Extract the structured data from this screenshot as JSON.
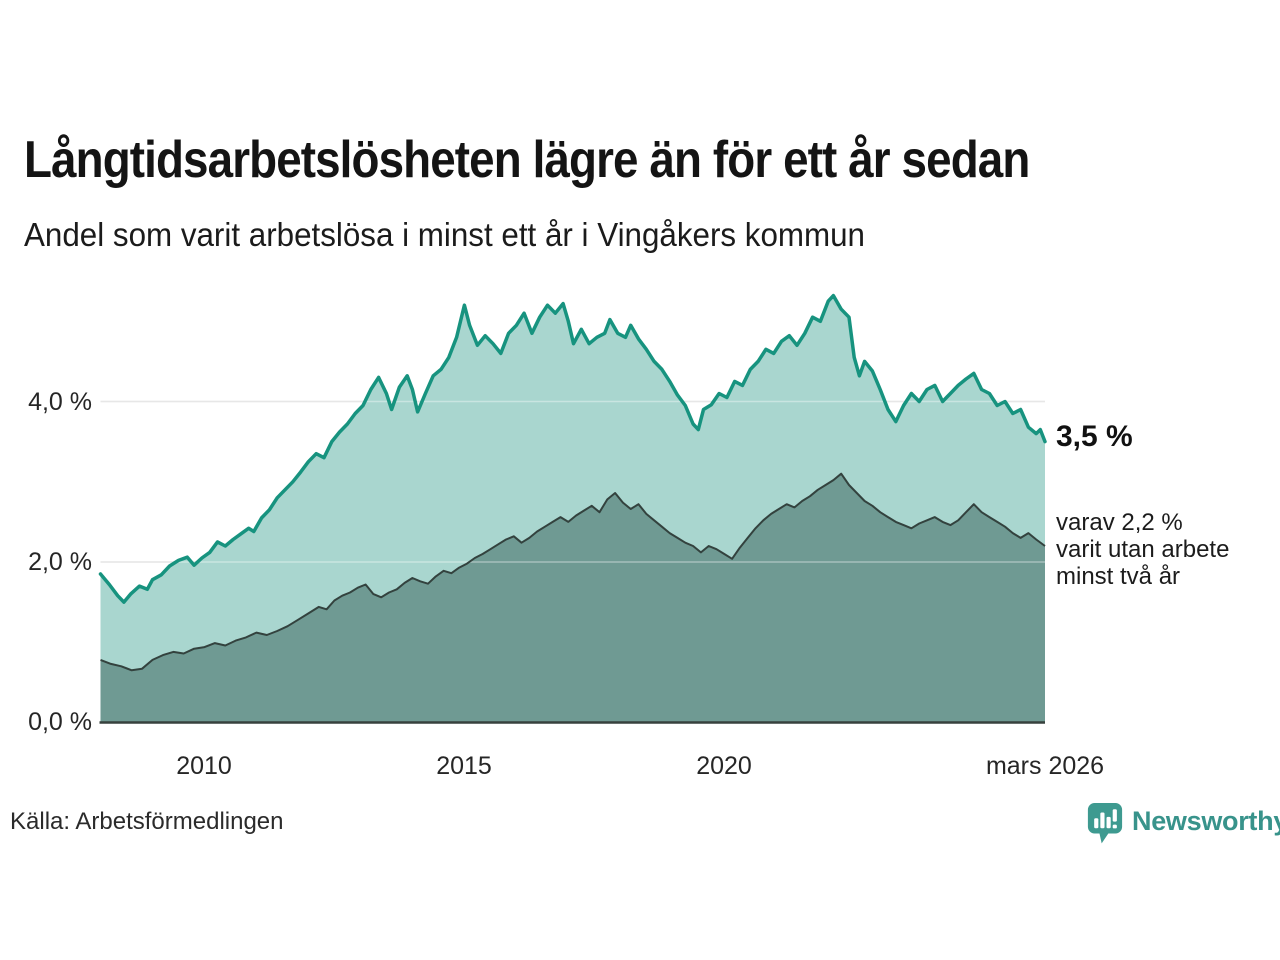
{
  "header": {
    "title": "Långtidsarbetslösheten lägre än för ett år sedan",
    "subtitle": "Andel som varit arbetslösa i minst ett år i Vingåkers kommun"
  },
  "chart_data": {
    "type": "area",
    "title": "Långtidsarbetslösheten lägre än för ett år sedan",
    "unit": "%",
    "grid": "horizontal",
    "legend_position": "none",
    "x_range": [
      2008.0,
      2026.17
    ],
    "ylim": [
      0,
      5.4
    ],
    "y_gridlines": [
      2.0,
      4.0
    ],
    "yticks": [
      {
        "value": 4.0,
        "label": "4,0 %"
      },
      {
        "value": 2.0,
        "label": "2,0 %"
      },
      {
        "value": 0.0,
        "label": "0,0 %"
      }
    ],
    "xticks": [
      {
        "value": 2010,
        "label": "2010"
      },
      {
        "value": 2015,
        "label": "2015"
      },
      {
        "value": 2020,
        "label": "2020"
      },
      {
        "value": 2026.17,
        "label": "mars 2026"
      }
    ],
    "colors": {
      "area1": "#a9d6cf",
      "line1": "#17937f",
      "area2": "#6f9a93",
      "line2": "#33423e",
      "grid": "#d9d9d9",
      "axis": "#37413d"
    },
    "series": [
      {
        "name": "minst ett år",
        "end_value_label": "3,5 %",
        "points": [
          [
            2008.0,
            1.85
          ],
          [
            2008.17,
            1.72
          ],
          [
            2008.33,
            1.58
          ],
          [
            2008.45,
            1.5
          ],
          [
            2008.58,
            1.6
          ],
          [
            2008.75,
            1.7
          ],
          [
            2008.9,
            1.66
          ],
          [
            2009.0,
            1.78
          ],
          [
            2009.17,
            1.84
          ],
          [
            2009.33,
            1.95
          ],
          [
            2009.5,
            2.02
          ],
          [
            2009.67,
            2.06
          ],
          [
            2009.8,
            1.96
          ],
          [
            2009.95,
            2.05
          ],
          [
            2010.1,
            2.12
          ],
          [
            2010.25,
            2.25
          ],
          [
            2010.4,
            2.2
          ],
          [
            2010.55,
            2.28
          ],
          [
            2010.7,
            2.35
          ],
          [
            2010.85,
            2.42
          ],
          [
            2010.95,
            2.38
          ],
          [
            2011.1,
            2.55
          ],
          [
            2011.25,
            2.65
          ],
          [
            2011.4,
            2.8
          ],
          [
            2011.55,
            2.9
          ],
          [
            2011.7,
            3.0
          ],
          [
            2011.85,
            3.12
          ],
          [
            2012.0,
            3.25
          ],
          [
            2012.15,
            3.35
          ],
          [
            2012.3,
            3.3
          ],
          [
            2012.45,
            3.5
          ],
          [
            2012.6,
            3.62
          ],
          [
            2012.75,
            3.72
          ],
          [
            2012.9,
            3.85
          ],
          [
            2013.05,
            3.95
          ],
          [
            2013.2,
            4.15
          ],
          [
            2013.35,
            4.3
          ],
          [
            2013.5,
            4.1
          ],
          [
            2013.6,
            3.9
          ],
          [
            2013.75,
            4.18
          ],
          [
            2013.9,
            4.32
          ],
          [
            2014.0,
            4.15
          ],
          [
            2014.1,
            3.87
          ],
          [
            2014.25,
            4.1
          ],
          [
            2014.4,
            4.32
          ],
          [
            2014.55,
            4.4
          ],
          [
            2014.7,
            4.55
          ],
          [
            2014.85,
            4.8
          ],
          [
            2015.0,
            5.2
          ],
          [
            2015.1,
            4.95
          ],
          [
            2015.25,
            4.7
          ],
          [
            2015.4,
            4.82
          ],
          [
            2015.55,
            4.72
          ],
          [
            2015.7,
            4.6
          ],
          [
            2015.85,
            4.85
          ],
          [
            2016.0,
            4.95
          ],
          [
            2016.15,
            5.1
          ],
          [
            2016.3,
            4.85
          ],
          [
            2016.45,
            5.05
          ],
          [
            2016.6,
            5.2
          ],
          [
            2016.75,
            5.1
          ],
          [
            2016.9,
            5.22
          ],
          [
            2017.0,
            5.0
          ],
          [
            2017.1,
            4.72
          ],
          [
            2017.25,
            4.9
          ],
          [
            2017.4,
            4.72
          ],
          [
            2017.55,
            4.8
          ],
          [
            2017.7,
            4.85
          ],
          [
            2017.8,
            5.02
          ],
          [
            2017.95,
            4.85
          ],
          [
            2018.1,
            4.8
          ],
          [
            2018.2,
            4.95
          ],
          [
            2018.35,
            4.78
          ],
          [
            2018.5,
            4.65
          ],
          [
            2018.65,
            4.5
          ],
          [
            2018.8,
            4.4
          ],
          [
            2018.95,
            4.25
          ],
          [
            2019.1,
            4.08
          ],
          [
            2019.25,
            3.95
          ],
          [
            2019.4,
            3.72
          ],
          [
            2019.5,
            3.65
          ],
          [
            2019.6,
            3.9
          ],
          [
            2019.75,
            3.96
          ],
          [
            2019.9,
            4.1
          ],
          [
            2020.05,
            4.05
          ],
          [
            2020.2,
            4.25
          ],
          [
            2020.35,
            4.2
          ],
          [
            2020.5,
            4.4
          ],
          [
            2020.65,
            4.5
          ],
          [
            2020.8,
            4.65
          ],
          [
            2020.95,
            4.6
          ],
          [
            2021.1,
            4.75
          ],
          [
            2021.25,
            4.82
          ],
          [
            2021.4,
            4.7
          ],
          [
            2021.55,
            4.85
          ],
          [
            2021.7,
            5.05
          ],
          [
            2021.85,
            5.0
          ],
          [
            2022.0,
            5.25
          ],
          [
            2022.1,
            5.32
          ],
          [
            2022.25,
            5.15
          ],
          [
            2022.4,
            5.05
          ],
          [
            2022.5,
            4.55
          ],
          [
            2022.6,
            4.32
          ],
          [
            2022.7,
            4.5
          ],
          [
            2022.85,
            4.38
          ],
          [
            2023.0,
            4.15
          ],
          [
            2023.15,
            3.9
          ],
          [
            2023.3,
            3.75
          ],
          [
            2023.45,
            3.95
          ],
          [
            2023.6,
            4.1
          ],
          [
            2023.75,
            4.0
          ],
          [
            2023.9,
            4.15
          ],
          [
            2024.05,
            4.2
          ],
          [
            2024.2,
            4.0
          ],
          [
            2024.35,
            4.1
          ],
          [
            2024.5,
            4.2
          ],
          [
            2024.65,
            4.28
          ],
          [
            2024.8,
            4.35
          ],
          [
            2024.95,
            4.15
          ],
          [
            2025.1,
            4.1
          ],
          [
            2025.25,
            3.95
          ],
          [
            2025.4,
            4.0
          ],
          [
            2025.55,
            3.85
          ],
          [
            2025.7,
            3.9
          ],
          [
            2025.85,
            3.68
          ],
          [
            2026.0,
            3.6
          ],
          [
            2026.08,
            3.65
          ],
          [
            2026.17,
            3.5
          ]
        ]
      },
      {
        "name": "minst två år",
        "end_value_label": "varav 2,2 % varit utan arbete minst två år",
        "points": [
          [
            2008.0,
            0.78
          ],
          [
            2008.2,
            0.73
          ],
          [
            2008.4,
            0.7
          ],
          [
            2008.6,
            0.65
          ],
          [
            2008.8,
            0.67
          ],
          [
            2009.0,
            0.78
          ],
          [
            2009.2,
            0.84
          ],
          [
            2009.4,
            0.88
          ],
          [
            2009.6,
            0.86
          ],
          [
            2009.8,
            0.92
          ],
          [
            2010.0,
            0.94
          ],
          [
            2010.2,
            0.99
          ],
          [
            2010.4,
            0.96
          ],
          [
            2010.6,
            1.02
          ],
          [
            2010.8,
            1.06
          ],
          [
            2011.0,
            1.12
          ],
          [
            2011.2,
            1.09
          ],
          [
            2011.4,
            1.14
          ],
          [
            2011.6,
            1.2
          ],
          [
            2011.8,
            1.28
          ],
          [
            2012.0,
            1.36
          ],
          [
            2012.2,
            1.44
          ],
          [
            2012.35,
            1.41
          ],
          [
            2012.5,
            1.52
          ],
          [
            2012.65,
            1.58
          ],
          [
            2012.8,
            1.62
          ],
          [
            2012.95,
            1.68
          ],
          [
            2013.1,
            1.72
          ],
          [
            2013.25,
            1.6
          ],
          [
            2013.4,
            1.56
          ],
          [
            2013.55,
            1.62
          ],
          [
            2013.7,
            1.66
          ],
          [
            2013.85,
            1.74
          ],
          [
            2014.0,
            1.8
          ],
          [
            2014.15,
            1.76
          ],
          [
            2014.3,
            1.73
          ],
          [
            2014.45,
            1.82
          ],
          [
            2014.6,
            1.89
          ],
          [
            2014.75,
            1.86
          ],
          [
            2014.9,
            1.93
          ],
          [
            2015.05,
            1.98
          ],
          [
            2015.2,
            2.05
          ],
          [
            2015.35,
            2.1
          ],
          [
            2015.5,
            2.16
          ],
          [
            2015.65,
            2.22
          ],
          [
            2015.8,
            2.28
          ],
          [
            2015.95,
            2.32
          ],
          [
            2016.1,
            2.24
          ],
          [
            2016.25,
            2.3
          ],
          [
            2016.4,
            2.38
          ],
          [
            2016.55,
            2.44
          ],
          [
            2016.7,
            2.5
          ],
          [
            2016.85,
            2.56
          ],
          [
            2017.0,
            2.5
          ],
          [
            2017.15,
            2.58
          ],
          [
            2017.3,
            2.64
          ],
          [
            2017.45,
            2.7
          ],
          [
            2017.6,
            2.62
          ],
          [
            2017.75,
            2.78
          ],
          [
            2017.9,
            2.86
          ],
          [
            2018.05,
            2.74
          ],
          [
            2018.2,
            2.66
          ],
          [
            2018.35,
            2.72
          ],
          [
            2018.5,
            2.6
          ],
          [
            2018.65,
            2.52
          ],
          [
            2018.8,
            2.44
          ],
          [
            2018.95,
            2.36
          ],
          [
            2019.1,
            2.3
          ],
          [
            2019.25,
            2.24
          ],
          [
            2019.4,
            2.2
          ],
          [
            2019.55,
            2.12
          ],
          [
            2019.7,
            2.2
          ],
          [
            2019.85,
            2.16
          ],
          [
            2020.0,
            2.1
          ],
          [
            2020.15,
            2.04
          ],
          [
            2020.3,
            2.18
          ],
          [
            2020.45,
            2.3
          ],
          [
            2020.6,
            2.42
          ],
          [
            2020.75,
            2.52
          ],
          [
            2020.9,
            2.6
          ],
          [
            2021.05,
            2.66
          ],
          [
            2021.2,
            2.72
          ],
          [
            2021.35,
            2.68
          ],
          [
            2021.5,
            2.76
          ],
          [
            2021.65,
            2.82
          ],
          [
            2021.8,
            2.9
          ],
          [
            2021.95,
            2.96
          ],
          [
            2022.1,
            3.02
          ],
          [
            2022.25,
            3.1
          ],
          [
            2022.4,
            2.96
          ],
          [
            2022.55,
            2.86
          ],
          [
            2022.7,
            2.76
          ],
          [
            2022.85,
            2.7
          ],
          [
            2023.0,
            2.62
          ],
          [
            2023.15,
            2.56
          ],
          [
            2023.3,
            2.5
          ],
          [
            2023.45,
            2.46
          ],
          [
            2023.6,
            2.42
          ],
          [
            2023.75,
            2.48
          ],
          [
            2023.9,
            2.52
          ],
          [
            2024.05,
            2.56
          ],
          [
            2024.2,
            2.5
          ],
          [
            2024.35,
            2.46
          ],
          [
            2024.5,
            2.52
          ],
          [
            2024.65,
            2.62
          ],
          [
            2024.8,
            2.72
          ],
          [
            2024.95,
            2.62
          ],
          [
            2025.1,
            2.56
          ],
          [
            2025.25,
            2.5
          ],
          [
            2025.4,
            2.44
          ],
          [
            2025.55,
            2.36
          ],
          [
            2025.7,
            2.3
          ],
          [
            2025.85,
            2.36
          ],
          [
            2026.0,
            2.28
          ],
          [
            2026.17,
            2.2
          ]
        ]
      }
    ]
  },
  "annotations": {
    "value_label": "3,5 %",
    "sub_label_lines": [
      "varav 2,2 %",
      "varit utan arbete",
      "minst två år"
    ]
  },
  "footer": {
    "source": "Källa: Arbetsförmedlingen",
    "brand": "Newsworthy",
    "brand_color": "#38938b"
  }
}
